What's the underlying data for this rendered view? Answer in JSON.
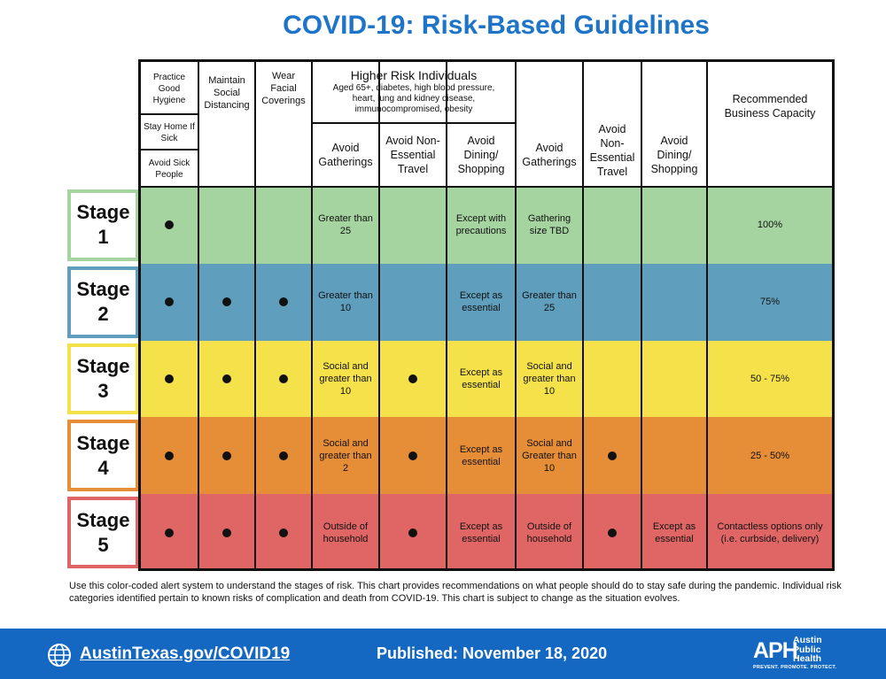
{
  "title": "COVID-19: Risk-Based Guidelines",
  "header": {
    "practice_hygiene": "Practice Good Hygiene",
    "stay_home": "Stay Home If Sick",
    "avoid_sick": "Avoid Sick People",
    "social_distancing": "Maintain Social Distancing",
    "face_coverings": "Wear Facial Coverings",
    "higher_risk_title": "Higher Risk Individuals",
    "higher_risk_desc": "Aged 65+, diabetes, high blood pressure, heart, lung and kidney disease, immunocompromised, obesity",
    "hr_gatherings": "Avoid Gatherings",
    "hr_travel": "Avoid Non-Essential Travel",
    "hr_dining": "Avoid Dining/ Shopping",
    "gen_gatherings": "Avoid Gatherings",
    "gen_travel": "Avoid Non-Essential Travel",
    "gen_dining": "Avoid Dining/ Shopping",
    "capacity": "Recommended Business Capacity"
  },
  "stages": [
    {
      "label": "Stage",
      "num": "1",
      "color": "#a5d4a0",
      "border": "#a5d4a0",
      "hygiene": true,
      "distancing": false,
      "coverings": false,
      "hr_gatherings": "Greater than 25",
      "hr_travel": "",
      "hr_travel_dot": false,
      "hr_dining": "Except with precautions",
      "gen_gatherings": "Gathering size TBD",
      "gen_travel": "",
      "gen_travel_dot": false,
      "gen_dining": "",
      "capacity": "100%"
    },
    {
      "label": "Stage",
      "num": "2",
      "color": "#5f9ebc",
      "border": "#5f9ebc",
      "hygiene": true,
      "distancing": true,
      "coverings": true,
      "hr_gatherings": "Greater than 10",
      "hr_travel": "",
      "hr_travel_dot": false,
      "hr_dining": "Except as essential",
      "gen_gatherings": "Greater than 25",
      "gen_travel": "",
      "gen_travel_dot": false,
      "gen_dining": "",
      "capacity": "75%"
    },
    {
      "label": "Stage",
      "num": "3",
      "color": "#f5e24b",
      "border": "#f5e24b",
      "hygiene": true,
      "distancing": true,
      "coverings": true,
      "hr_gatherings": "Social and greater than 10",
      "hr_travel": "",
      "hr_travel_dot": true,
      "hr_dining": "Except as essential",
      "gen_gatherings": "Social and greater than 10",
      "gen_travel": "",
      "gen_travel_dot": false,
      "gen_dining": "",
      "capacity": "50 - 75%"
    },
    {
      "label": "Stage",
      "num": "4",
      "color": "#e68d37",
      "border": "#e68d37",
      "hygiene": true,
      "distancing": true,
      "coverings": true,
      "hr_gatherings": "Social and greater than 2",
      "hr_travel": "",
      "hr_travel_dot": true,
      "hr_dining": "Except as essential",
      "gen_gatherings": "Social and Greater than 10",
      "gen_travel": "",
      "gen_travel_dot": true,
      "gen_dining": "",
      "capacity": "25 - 50%"
    },
    {
      "label": "Stage",
      "num": "5",
      "color": "#e06666",
      "border": "#e06666",
      "hygiene": true,
      "distancing": true,
      "coverings": true,
      "hr_gatherings": "Outside of household",
      "hr_travel": "",
      "hr_travel_dot": true,
      "hr_dining": "Except as essential",
      "gen_gatherings": "Outside of household",
      "gen_travel": "",
      "gen_travel_dot": true,
      "gen_dining": "Except as essential",
      "capacity": "Contactless options only (i.e. curbside, delivery)"
    }
  ],
  "note": "Use this color-coded alert system to understand the stages of risk. This chart provides recommendations on what people should do to stay safe during the pandemic. Individual risk categories identified pertain to known risks of complication and death from COVID-19. This chart is subject to change as the situation evolves.",
  "footer": {
    "url": "AustinTexas.gov/COVID19",
    "published": "Published: November 18, 2020",
    "logo_mark": "APH",
    "logo_line1": "Austin",
    "logo_line2": "Public",
    "logo_line3": "Health",
    "logo_tag": "PREVENT. PROMOTE. PROTECT."
  }
}
